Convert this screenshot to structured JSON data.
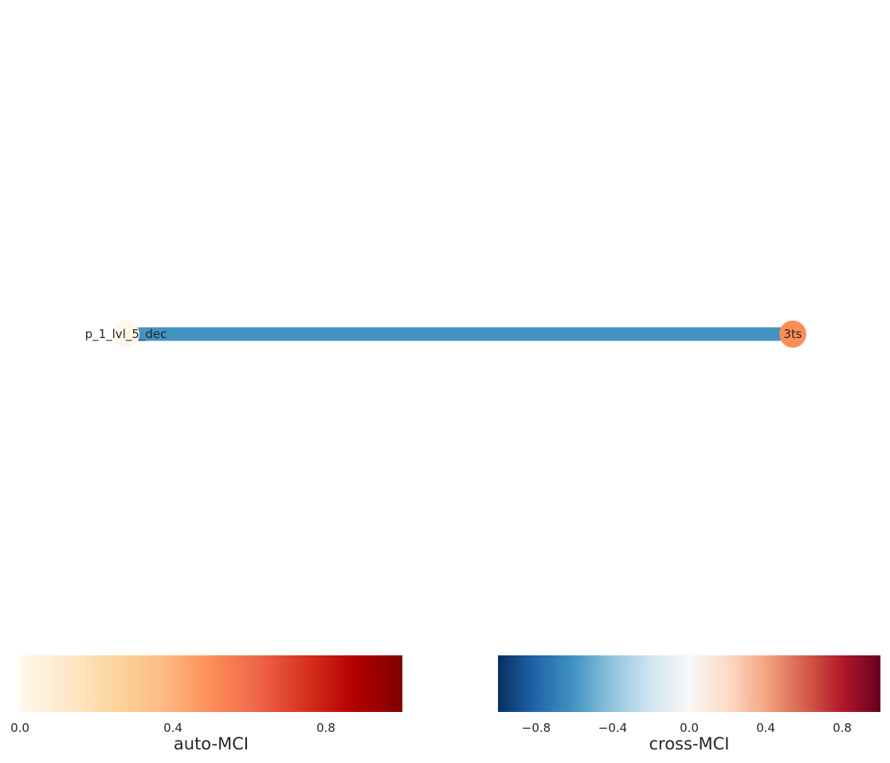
{
  "graph": {
    "nodes": [
      {
        "label": "p_1_lvl_5_dec",
        "auto_mci": 0.0,
        "color": "#fff7ec"
      },
      {
        "label": "3ts",
        "auto_mci": 0.47,
        "color": "#fc8d59"
      }
    ],
    "edges": [
      {
        "from": "p_1_lvl_5_dec",
        "to": "3ts",
        "color": "#4393c3"
      }
    ]
  },
  "colorbars": {
    "auto": {
      "label": "auto-MCI",
      "ticks": [
        "0.0",
        "0.4",
        "0.8"
      ],
      "tick_values": [
        0.0,
        0.4,
        0.8
      ],
      "range": [
        0.0,
        1.0
      ],
      "colormap": "OrRd",
      "stops": [
        "#fff7ec",
        "#fee8c8",
        "#fdd49e",
        "#fdbb84",
        "#fc8d59",
        "#ef6548",
        "#d7301f",
        "#b30000",
        "#7f0000"
      ]
    },
    "cross": {
      "label": "cross-MCI",
      "ticks": [
        "−0.8",
        "−0.4",
        "0.0",
        "0.4",
        "0.8"
      ],
      "tick_values": [
        -0.8,
        -0.4,
        0.0,
        0.4,
        0.8
      ],
      "range": [
        -1.0,
        1.0
      ],
      "colormap": "RdBu_r",
      "stops": [
        "#053061",
        "#2166ac",
        "#4393c3",
        "#92c5de",
        "#d1e5f0",
        "#f7f7f7",
        "#fddbc7",
        "#f4a582",
        "#d6604d",
        "#b2182b",
        "#67001f"
      ]
    }
  }
}
